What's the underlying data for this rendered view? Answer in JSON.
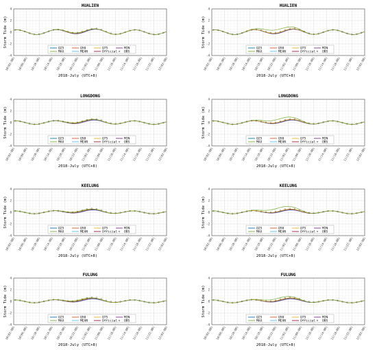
{
  "figure": {
    "colors": {
      "Q25": "#0072BD",
      "Q50": "#D95319",
      "Q75": "#EDB120",
      "MIN": "#7E2F8E",
      "MAX": "#77AC30",
      "MEAN": "#4DBEEE",
      "Official": "#A2142F",
      "OBS": "#333333"
    }
  },
  "chart_data": [
    {
      "type": "line",
      "station": "HUALIEN",
      "title": "HUALIEN",
      "xlabel": "2018-July (UTC+8)",
      "ylabel": "Storm Tide (m)",
      "ylim": [
        -4,
        4
      ],
      "yticks": [
        "4",
        "2",
        "0",
        "-2",
        "-4"
      ],
      "grid": true,
      "xticks": [
        "10(02:00)",
        "10(06:00)",
        "10(10:00)",
        "10(14:00)",
        "10(18:00)",
        "10(22:00)",
        "11(02:00)",
        "11(06:00)",
        "11(10:00)",
        "11(14:00)",
        "11(18:00)",
        "11(22:00)",
        "12(02:00)"
      ],
      "x_hours": [
        0,
        48
      ],
      "base": {
        "amp": 0.4,
        "period": 12.4,
        "phase": 1.0
      },
      "surge": {
        "peak": 0.3,
        "center": 22,
        "width": 7
      },
      "max_surge": 0.3,
      "legend": [
        "Q25",
        "Q50",
        "Q75",
        "MIN",
        "MAX",
        "MEAN",
        "Official",
        "OBS"
      ]
    },
    {
      "type": "line",
      "station": "HUALIEN",
      "title": "HUALIEN",
      "xlabel": "2018-July (UTC+8)",
      "ylabel": "Storm Tide (m)",
      "ylim": [
        -4,
        4
      ],
      "yticks": [
        "4",
        "2",
        "0",
        "-2",
        "-4"
      ],
      "grid": true,
      "xticks": [
        "10(02:00)",
        "10(06:00)",
        "10(10:00)",
        "10(14:00)",
        "10(18:00)",
        "10(22:00)",
        "11(02:00)",
        "11(06:00)",
        "11(10:00)",
        "11(14:00)",
        "11(18:00)",
        "11(22:00)",
        "12(02:00)"
      ],
      "x_hours": [
        0,
        48
      ],
      "base": {
        "amp": 0.4,
        "period": 12.4,
        "phase": 1.0
      },
      "surge": {
        "peak": 0.3,
        "center": 22,
        "width": 7
      },
      "max_surge": 0.8,
      "legend": [
        "Q25",
        "Q50",
        "Q75",
        "MIN",
        "MAX",
        "MEAN",
        "Official",
        "OBS"
      ]
    },
    {
      "type": "line",
      "station": "LONGDONG",
      "title": "LONGDONG",
      "xlabel": "2018-July (UTC+8)",
      "ylabel": "Storm Tide (m)",
      "ylim": [
        -4,
        4
      ],
      "yticks": [
        "4",
        "2",
        "0",
        "-2",
        "-4"
      ],
      "grid": true,
      "xticks": [
        "10(02:00)",
        "10(06:00)",
        "10(10:00)",
        "10(14:00)",
        "10(18:00)",
        "10(22:00)",
        "11(02:00)",
        "11(06:00)",
        "11(10:00)",
        "11(14:00)",
        "11(18:00)",
        "11(22:00)",
        "12(02:00)"
      ],
      "x_hours": [
        0,
        48
      ],
      "base": {
        "amp": 0.3,
        "period": 12.4,
        "phase": 0.6
      },
      "surge": {
        "peak": 0.35,
        "center": 23,
        "width": 7
      },
      "max_surge": 0.35,
      "legend": [
        "Q25",
        "Q50",
        "Q75",
        "MIN",
        "MAX",
        "MEAN",
        "Official",
        "OBS"
      ]
    },
    {
      "type": "line",
      "station": "LONGDONG",
      "title": "LONGDONG",
      "xlabel": "2018-July (UTC+8)",
      "ylabel": "Storm Tide (m)",
      "ylim": [
        -4,
        4
      ],
      "yticks": [
        "4",
        "2",
        "0",
        "-2",
        "-4"
      ],
      "grid": true,
      "xticks": [
        "10(02:00)",
        "10(06:00)",
        "10(10:00)",
        "10(14:00)",
        "10(18:00)",
        "10(22:00)",
        "11(02:00)",
        "11(06:00)",
        "11(10:00)",
        "11(14:00)",
        "11(18:00)",
        "11(22:00)",
        "12(02:00)"
      ],
      "x_hours": [
        0,
        48
      ],
      "base": {
        "amp": 0.3,
        "period": 12.4,
        "phase": 0.6
      },
      "surge": {
        "peak": 0.35,
        "center": 23,
        "width": 7
      },
      "max_surge": 0.8,
      "legend": [
        "Q25",
        "Q50",
        "Q75",
        "MIN",
        "MAX",
        "MEAN",
        "Official",
        "OBS"
      ]
    },
    {
      "type": "line",
      "station": "KEELUNG",
      "title": "KEELUNG",
      "xlabel": "2018-July (UTC+8)",
      "ylabel": "Storm Tide (m)",
      "ylim": [
        -4,
        4
      ],
      "yticks": [
        "4",
        "2",
        "0",
        "-2",
        "-4"
      ],
      "grid": true,
      "xticks": [
        "10(02:00)",
        "10(06:00)",
        "10(10:00)",
        "10(14:00)",
        "10(18:00)",
        "10(22:00)",
        "11(02:00)",
        "11(06:00)",
        "11(10:00)",
        "11(14:00)",
        "11(18:00)",
        "11(22:00)",
        "12(02:00)"
      ],
      "x_hours": [
        0,
        48
      ],
      "base": {
        "amp": 0.25,
        "period": 12.4,
        "phase": 0.3
      },
      "surge": {
        "peak": 0.4,
        "center": 23,
        "width": 7
      },
      "max_surge": 0.4,
      "legend": [
        "Q25",
        "Q50",
        "Q75",
        "MIN",
        "MAX",
        "MEAN",
        "Official",
        "OBS"
      ]
    },
    {
      "type": "line",
      "station": "KEELUNG",
      "title": "KEELUNG",
      "xlabel": "2018-July (UTC+8)",
      "ylabel": "Storm Tide (m)",
      "ylim": [
        -4,
        4
      ],
      "yticks": [
        "4",
        "2",
        "0",
        "-2",
        "-4"
      ],
      "grid": true,
      "xticks": [
        "10(02:00)",
        "10(06:00)",
        "10(10:00)",
        "10(14:00)",
        "10(18:00)",
        "10(22:00)",
        "11(02:00)",
        "11(06:00)",
        "11(10:00)",
        "11(14:00)",
        "11(18:00)",
        "11(22:00)",
        "12(02:00)"
      ],
      "x_hours": [
        0,
        48
      ],
      "base": {
        "amp": 0.25,
        "period": 12.4,
        "phase": 0.3
      },
      "surge": {
        "peak": 0.4,
        "center": 23,
        "width": 7
      },
      "max_surge": 0.9,
      "legend": [
        "Q25",
        "Q50",
        "Q75",
        "MIN",
        "MAX",
        "MEAN",
        "Official",
        "OBS"
      ]
    },
    {
      "type": "line",
      "station": "FULUNG",
      "title": "FULUNG",
      "xlabel": "2018-July (UTC+8)",
      "ylabel": "Storm Tide (m)",
      "ylim": [
        -4,
        4
      ],
      "yticks": [
        "4",
        "2",
        "0",
        "-2",
        "-4"
      ],
      "grid": true,
      "xticks": [
        "10(02:00)",
        "10(06:00)",
        "10(10:00)",
        "10(14:00)",
        "10(18:00)",
        "10(22:00)",
        "11(02:00)",
        "11(06:00)",
        "11(10:00)",
        "11(14:00)",
        "11(18:00)",
        "11(22:00)",
        "12(02:00)"
      ],
      "x_hours": [
        0,
        48
      ],
      "base": {
        "amp": 0.25,
        "period": 12.4,
        "phase": 0.3
      },
      "surge": {
        "peak": 0.45,
        "center": 23,
        "width": 7
      },
      "max_surge": 0.45,
      "legend": [
        "Q25",
        "Q50",
        "Q75",
        "MIN",
        "MAX",
        "MEAN",
        "Official",
        "OBS"
      ]
    },
    {
      "type": "line",
      "station": "FULUNG",
      "title": "FULUNG",
      "xlabel": "2018-July (UTC+8)",
      "ylabel": "Storm Tide (m)",
      "ylim": [
        -4,
        4
      ],
      "yticks": [
        "4",
        "2",
        "0",
        "-2",
        "-4"
      ],
      "grid": true,
      "xticks": [
        "10(02:00)",
        "10(06:00)",
        "10(10:00)",
        "10(14:00)",
        "10(18:00)",
        "10(22:00)",
        "11(02:00)",
        "11(06:00)",
        "11(10:00)",
        "11(14:00)",
        "11(18:00)",
        "11(22:00)",
        "12(02:00)"
      ],
      "x_hours": [
        0,
        48
      ],
      "base": {
        "amp": 0.25,
        "period": 12.4,
        "phase": 0.3
      },
      "surge": {
        "peak": 0.45,
        "center": 23,
        "width": 7
      },
      "max_surge": 0.7,
      "legend": [
        "Q25",
        "Q50",
        "Q75",
        "MIN",
        "MAX",
        "MEAN",
        "Official",
        "OBS"
      ]
    }
  ]
}
